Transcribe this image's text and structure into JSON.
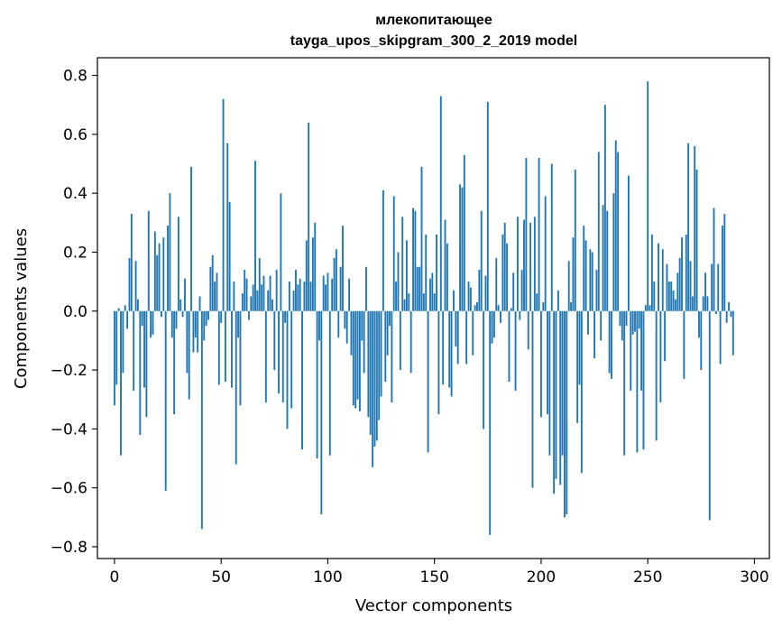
{
  "chart_data": {
    "type": "bar",
    "title": "млекопитающее",
    "subtitle": "tayga_upos_skipgram_300_2_2019 model",
    "xlabel": "Vector components",
    "ylabel": "Components values",
    "xlim": [
      -8,
      307
    ],
    "ylim": [
      -0.84,
      0.86
    ],
    "xticks": [
      0,
      50,
      100,
      150,
      200,
      250,
      300
    ],
    "yticks": [
      -0.8,
      -0.6,
      -0.4,
      -0.2,
      0.0,
      0.2,
      0.4,
      0.6,
      0.8
    ],
    "xtick_labels": [
      "0",
      "50",
      "100",
      "150",
      "200",
      "250",
      "300"
    ],
    "ytick_labels": [
      "−0.8",
      "−0.6",
      "−0.4",
      "−0.2",
      "0.0",
      "0.2",
      "0.4",
      "0.6",
      "0.8"
    ],
    "grid": false,
    "bar_color": "#1f77b4",
    "values": [
      -0.32,
      -0.25,
      0.01,
      -0.49,
      -0.21,
      0.02,
      -0.06,
      0.18,
      0.33,
      -0.27,
      0.17,
      0.04,
      -0.42,
      -0.05,
      -0.26,
      -0.36,
      0.34,
      -0.09,
      -0.08,
      0.27,
      0.19,
      0.23,
      -0.02,
      0.25,
      -0.61,
      0.29,
      0.4,
      -0.09,
      -0.35,
      -0.06,
      0.32,
      0.04,
      -0.02,
      0.11,
      -0.21,
      -0.3,
      0.49,
      -0.14,
      -0.09,
      -0.14,
      0.05,
      -0.74,
      -0.1,
      -0.05,
      -0.03,
      0.15,
      0.19,
      0.1,
      0.13,
      -0.25,
      -0.04,
      0.72,
      -0.24,
      0.57,
      0.37,
      -0.26,
      0.1,
      -0.52,
      -0.09,
      -0.32,
      0.06,
      0.14,
      0.11,
      -0.03,
      0.05,
      0.09,
      0.51,
      0.07,
      0.18,
      0.09,
      0.12,
      -0.31,
      0.07,
      0.12,
      0.04,
      -0.2,
      0.14,
      -0.28,
      0.4,
      -0.31,
      -0.04,
      -0.4,
      0.1,
      -0.33,
      0.07,
      0.14,
      0.09,
      0.11,
      -0.47,
      0.1,
      0.24,
      0.64,
      0.1,
      0.25,
      0.3,
      -0.5,
      -0.1,
      -0.69,
      0.12,
      0.09,
      0.13,
      -0.49,
      0.11,
      0.18,
      0.21,
      -0.09,
      0.15,
      0.29,
      -0.06,
      -0.11,
      0.11,
      -0.15,
      -0.32,
      -0.33,
      -0.3,
      -0.34,
      -0.1,
      -0.21,
      0.15,
      -0.36,
      -0.42,
      -0.53,
      -0.46,
      -0.44,
      -0.37,
      -0.29,
      0.41,
      -0.24,
      -0.15,
      -0.05,
      -0.31,
      0.39,
      0.1,
      0.2,
      -0.2,
      0.32,
      0.04,
      0.24,
      0.06,
      -0.21,
      0.35,
      0.34,
      0.15,
      0.15,
      0.49,
      0.06,
      0.26,
      -0.48,
      0.11,
      0.13,
      0.06,
      0.26,
      -0.35,
      0.73,
      -0.25,
      0.31,
      0.23,
      -0.26,
      -0.29,
      0.07,
      -0.12,
      -0.18,
      0.43,
      0.42,
      0.53,
      -0.18,
      0.1,
      0.08,
      -0.15,
      0.02,
      0.03,
      0.14,
      0.34,
      -0.4,
      0.12,
      0.71,
      -0.76,
      -0.11,
      -0.09,
      0.18,
      0.02,
      -0.04,
      0.26,
      0.3,
      0.23,
      -0.24,
      0.01,
      0.13,
      -0.27,
      0.32,
      -0.03,
      0.14,
      0.31,
      0.52,
      -0.13,
      0.3,
      -0.6,
      0.32,
      0.06,
      0.52,
      -0.36,
      0.03,
      0.39,
      -0.35,
      -0.49,
      0.5,
      -0.62,
      -0.57,
      0.07,
      -0.59,
      -0.49,
      -0.7,
      -0.69,
      0.17,
      0.03,
      0.25,
      0.48,
      -0.38,
      -0.25,
      -0.55,
      0.29,
      0.24,
      -0.08,
      0.21,
      0.2,
      -0.16,
      0.14,
      0.54,
      -0.1,
      0.36,
      0.7,
      0.34,
      -0.21,
      -0.23,
      0.4,
      0.58,
      0.54,
      -0.05,
      -0.1,
      -0.49,
      -0.05,
      0.46,
      -0.27,
      -0.08,
      -0.07,
      -0.48,
      -0.06,
      -0.27,
      -0.47,
      0.02,
      0.78,
      0.02,
      0.26,
      0.1,
      -0.44,
      0.23,
      -0.31,
      0.21,
      -0.17,
      0.16,
      0.1,
      0.1,
      0.07,
      0.04,
      0.13,
      0.18,
      0.25,
      -0.23,
      0.26,
      0.57,
      0.17,
      0.05,
      0.56,
      0.48,
      -0.09,
      -0.2,
      0.05,
      0.13,
      0.05,
      -0.71,
      0.16,
      0.35,
      -0.01,
      0.16,
      -0.18,
      0.29,
      0.33,
      -0.04,
      0.03,
      -0.02,
      -0.15
    ]
  }
}
